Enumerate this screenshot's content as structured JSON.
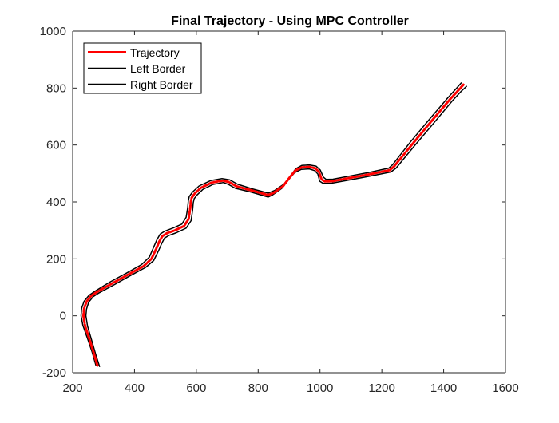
{
  "chart_data": {
    "type": "line",
    "title": "Final Trajectory - Using MPC Controller",
    "xlabel": "",
    "ylabel": "",
    "xlim": [
      200,
      1600
    ],
    "ylim": [
      -200,
      1000
    ],
    "xticks": [
      200,
      400,
      600,
      800,
      1000,
      1200,
      1400,
      1600
    ],
    "yticks": [
      -200,
      0,
      200,
      400,
      600,
      800,
      1000
    ],
    "grid": false,
    "legend_position": "top-left",
    "series": [
      {
        "name": "Trajectory",
        "color": "#ff0000",
        "style": "solid",
        "x": [
          280,
          268,
          255,
          240,
          235,
          237,
          245,
          260,
          280,
          330,
          380,
          430,
          455,
          470,
          480,
          490,
          505,
          530,
          560,
          575,
          580,
          582,
          585,
          595,
          615,
          650,
          685,
          705,
          730,
          780,
          832,
          850,
          880,
          905,
          920,
          940,
          965,
          985,
          997,
          1005,
          1015,
          1040,
          1100,
          1160,
          1226,
          1240,
          1300,
          1360,
          1420,
          1450,
          1464
        ],
        "y": [
          -175,
          -130,
          -85,
          -35,
          0,
          25,
          50,
          70,
          85,
          115,
          145,
          175,
          200,
          235,
          260,
          280,
          290,
          300,
          315,
          340,
          375,
          400,
          415,
          430,
          450,
          468,
          475,
          470,
          455,
          440,
          424,
          432,
          455,
          490,
          510,
          521,
          523,
          518,
          505,
          480,
          472,
          473,
          485,
          497,
          512,
          525,
          605,
          683,
          760,
          795,
          812
        ]
      },
      {
        "name": "Left Border",
        "color": "#000000",
        "style": "solid",
        "x": [
          275,
          263,
          249,
          233,
          227,
          229,
          237,
          253,
          273,
          323,
          374,
          423,
          448,
          462,
          472,
          483,
          499,
          524,
          553,
          567,
          572,
          574,
          577,
          588,
          609,
          646,
          683,
          707,
          734,
          781,
          832,
          853,
          884,
          908,
          922,
          941,
          965,
          987,
          1001,
          1011,
          1020,
          1042,
          1101,
          1161,
          1223,
          1235,
          1293,
          1353,
          1413,
          1443,
          1457
        ],
        "y": [
          -173,
          -128,
          -83,
          -34,
          0,
          26,
          51,
          72,
          87,
          120,
          150,
          180,
          206,
          241,
          266,
          287,
          298,
          308,
          322,
          346,
          379,
          403,
          419,
          435,
          456,
          475,
          482,
          478,
          462,
          446,
          431,
          440,
          463,
          497,
          517,
          528,
          530,
          526,
          512,
          487,
          479,
          480,
          492,
          504,
          519,
          531,
          611,
          689,
          765,
          801,
          818
        ]
      },
      {
        "name": "Right Border",
        "color": "#000000",
        "style": "solid",
        "x": [
          287,
          274,
          262,
          248,
          243,
          245,
          252,
          266,
          286,
          336,
          385,
          436,
          462,
          478,
          488,
          497,
          511,
          536,
          567,
          583,
          588,
          590,
          593,
          602,
          621,
          653,
          687,
          703,
          726,
          779,
          832,
          846,
          876,
          902,
          918,
          939,
          965,
          983,
          993,
          999,
          1010,
          1038,
          1099,
          1159,
          1229,
          1246,
          1307,
          1368,
          1428,
          1458,
          1474
        ],
        "y": [
          -178,
          -133,
          -88,
          -36,
          0,
          24,
          48,
          67,
          81,
          110,
          140,
          170,
          194,
          229,
          254,
          273,
          282,
          292,
          308,
          334,
          371,
          397,
          411,
          424,
          444,
          461,
          468,
          462,
          448,
          434,
          417,
          424,
          447,
          483,
          503,
          514,
          516,
          510,
          498,
          473,
          465,
          466,
          478,
          490,
          505,
          519,
          599,
          677,
          755,
          790,
          806
        ]
      }
    ]
  }
}
